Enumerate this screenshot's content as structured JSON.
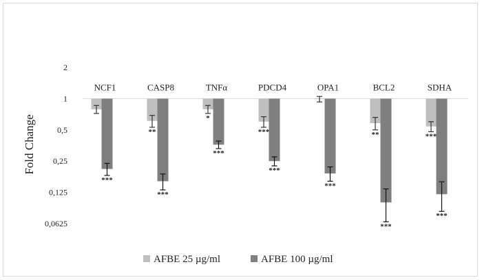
{
  "chart_data": {
    "type": "bar",
    "ylabel": "Fold Change",
    "xlabel": "",
    "y_scale": "log2",
    "ylim": [
      0.0625,
      2
    ],
    "y_ticks": [
      "2",
      "1",
      "0,5",
      "0,25",
      "0,125",
      "0,0625"
    ],
    "grid": false,
    "legend_position": "bottom",
    "colors": {
      "AFBE 25 µg/ml": "#bfbfbf",
      "AFBE 100 µg/ml": "#7f7f7f"
    },
    "categories": [
      "NCF1",
      "CASP8",
      "TNFα",
      "PDCD4",
      "OPA1",
      "BCL2",
      "SDHA"
    ],
    "series": [
      {
        "name": "AFBE 25 µg/ml",
        "values": [
          0.79,
          0.61,
          0.79,
          0.6,
          0.99,
          0.58,
          0.54
        ],
        "error": [
          0.07,
          0.08,
          0.07,
          0.07,
          0.06,
          0.08,
          0.06
        ],
        "significance": [
          "",
          "**",
          "*",
          "***",
          "",
          "**",
          "***"
        ]
      },
      {
        "name": "AFBE 100 µg/ml",
        "values": [
          0.21,
          0.16,
          0.36,
          0.25,
          0.19,
          0.1,
          0.12
        ],
        "error": [
          0.028,
          0.028,
          0.03,
          0.025,
          0.03,
          0.035,
          0.038
        ],
        "significance": [
          "***",
          "***",
          "***",
          "***",
          "***",
          "***",
          "***"
        ]
      }
    ]
  }
}
